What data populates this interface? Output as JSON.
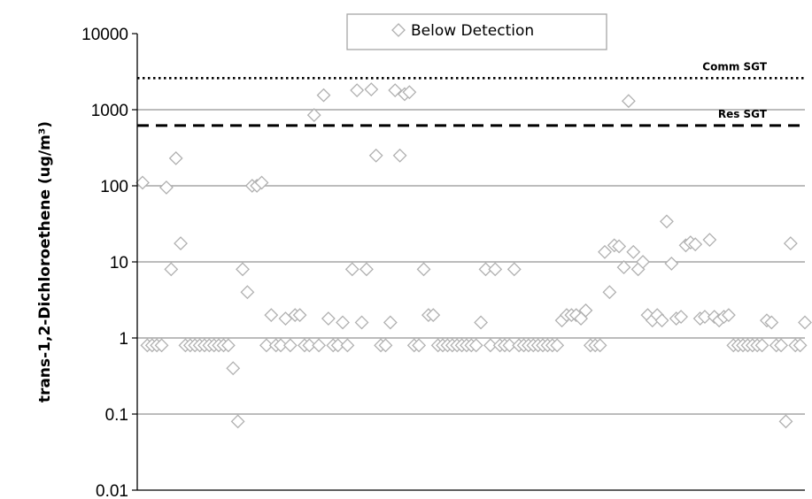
{
  "chart_data": {
    "type": "scatter",
    "yscale": "log",
    "ylim": [
      0.01,
      10000
    ],
    "yticks": [
      "10000",
      "1000",
      "100",
      "10",
      "1",
      "0.1",
      "0.01"
    ],
    "ylabel": "trans-1,2-Dichloroethene (ug/m³)",
    "xlabel": "",
    "grid": true,
    "legend": {
      "placement": "top-center",
      "entries": [
        "Below Detection"
      ]
    },
    "marker": {
      "shape": "diamond-open",
      "color": "#b0b0b0"
    },
    "reference_lines": [
      {
        "label": "Comm SGT",
        "value": 2600,
        "style": "dotted"
      },
      {
        "label": "Res SGT",
        "value": 620,
        "style": "dashed"
      }
    ],
    "series": [
      {
        "name": "Below Detection",
        "y": [
          110,
          0.8,
          0.8,
          0.8,
          0.8,
          95,
          8,
          230,
          17.5,
          0.8,
          0.8,
          0.8,
          0.8,
          0.8,
          0.8,
          0.8,
          0.8,
          0.8,
          0.8,
          0.4,
          0.08,
          8,
          4,
          100,
          100,
          110,
          0.8,
          2,
          0.8,
          0.8,
          1.8,
          0.8,
          2,
          2,
          0.8,
          0.8,
          850,
          0.8,
          1550,
          1.8,
          0.8,
          0.8,
          1.6,
          0.8,
          8,
          1800,
          1.6,
          8,
          1850,
          250,
          0.8,
          0.8,
          1.6,
          1800,
          250,
          1600,
          1700,
          0.8,
          0.8,
          8,
          2,
          2,
          0.8,
          0.8,
          0.8,
          0.8,
          0.8,
          0.8,
          0.8,
          0.8,
          0.8,
          1.6,
          8,
          0.8,
          8,
          0.8,
          0.8,
          0.8,
          8,
          0.8,
          0.8,
          0.8,
          0.8,
          0.8,
          0.8,
          0.8,
          0.8,
          0.8,
          1.7,
          2,
          2,
          2,
          1.8,
          2.3,
          0.8,
          0.8,
          0.8,
          13.5,
          4,
          16.5,
          16,
          8.5,
          1300,
          13.5,
          8,
          10,
          2,
          1.7,
          2,
          1.7,
          34,
          9.5,
          1.8,
          1.9,
          16.5,
          18,
          17,
          1.8,
          1.9,
          19.5,
          1.9,
          1.7,
          1.9,
          2,
          0.8,
          0.8,
          0.8,
          0.8,
          0.8,
          0.8,
          0.8,
          1.7,
          1.6,
          0.8,
          0.8,
          0.08,
          17.5,
          0.8,
          0.8,
          1.6
        ]
      }
    ]
  }
}
